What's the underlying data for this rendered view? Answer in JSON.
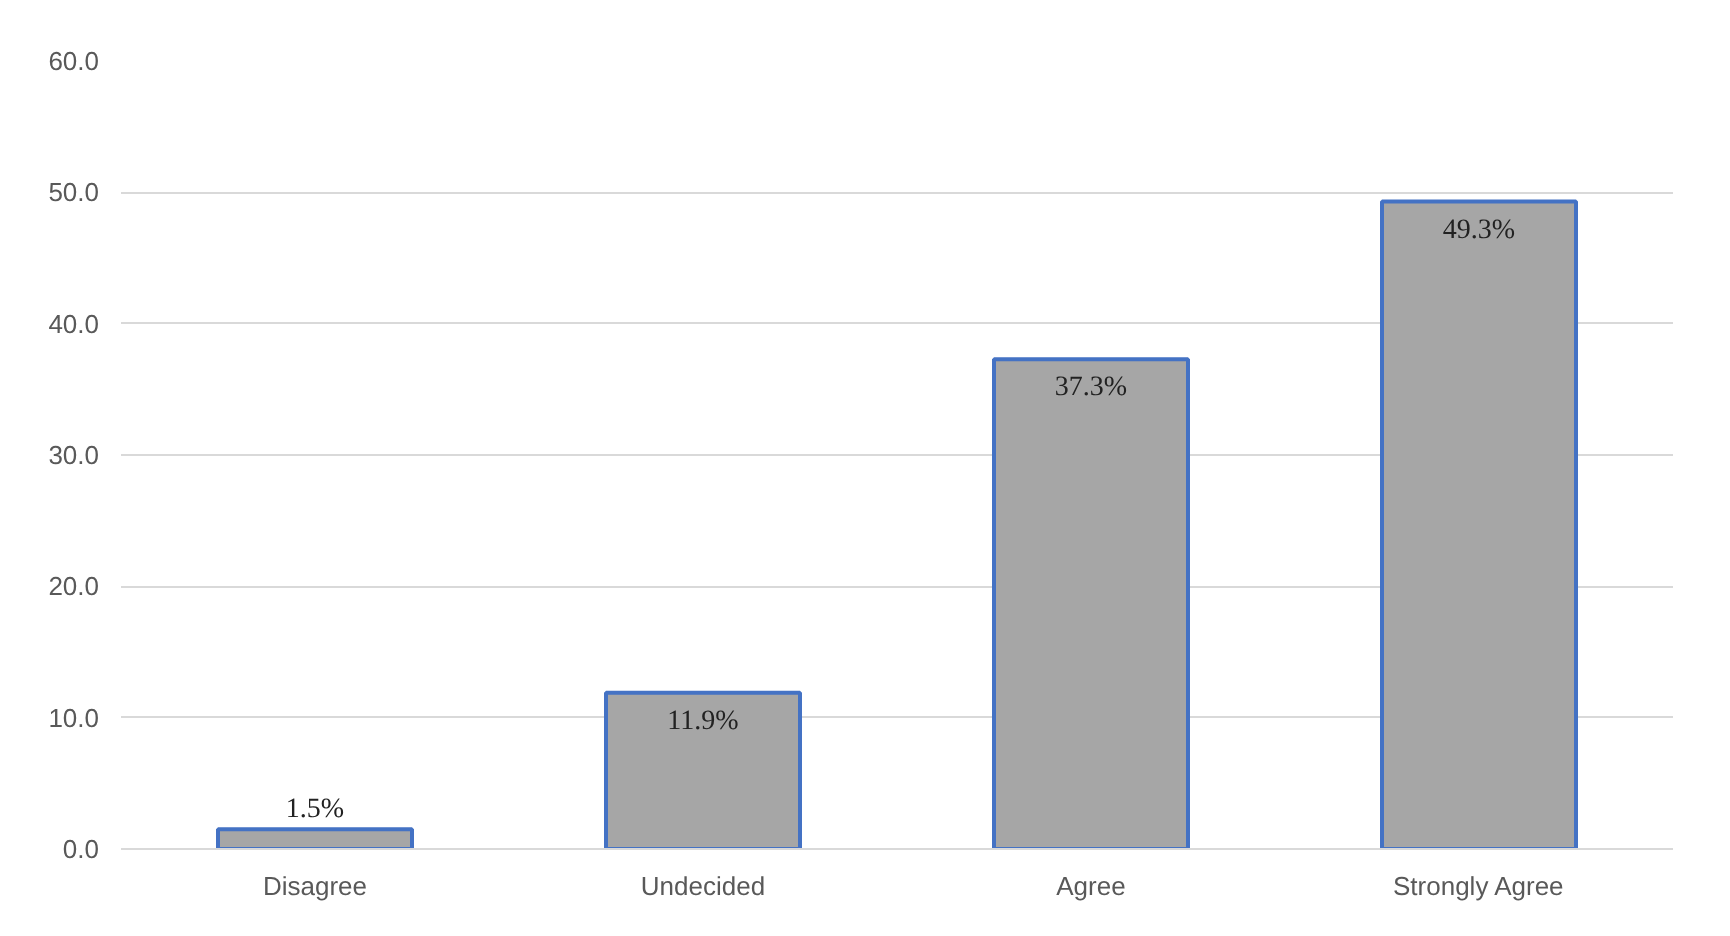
{
  "chart_data": {
    "type": "bar",
    "categories": [
      "Disagree",
      "Undecided",
      "Agree",
      "Strongly Agree"
    ],
    "values": [
      1.5,
      11.9,
      37.3,
      49.3
    ],
    "value_labels": [
      "1.5%",
      "11.9%",
      "37.3%",
      "49.3%"
    ],
    "color": "#a6a6a6",
    "ylim": [
      0,
      60
    ],
    "yticks": [
      {
        "value": 0,
        "label": "0.0"
      },
      {
        "value": 10,
        "label": "10.0"
      },
      {
        "value": 20,
        "label": "20.0"
      },
      {
        "value": 30,
        "label": "30.0"
      },
      {
        "value": 40,
        "label": "40.0"
      },
      {
        "value": 50,
        "label": "50.0"
      },
      {
        "value": 60,
        "label": "60.0"
      }
    ],
    "grid": "y"
  }
}
